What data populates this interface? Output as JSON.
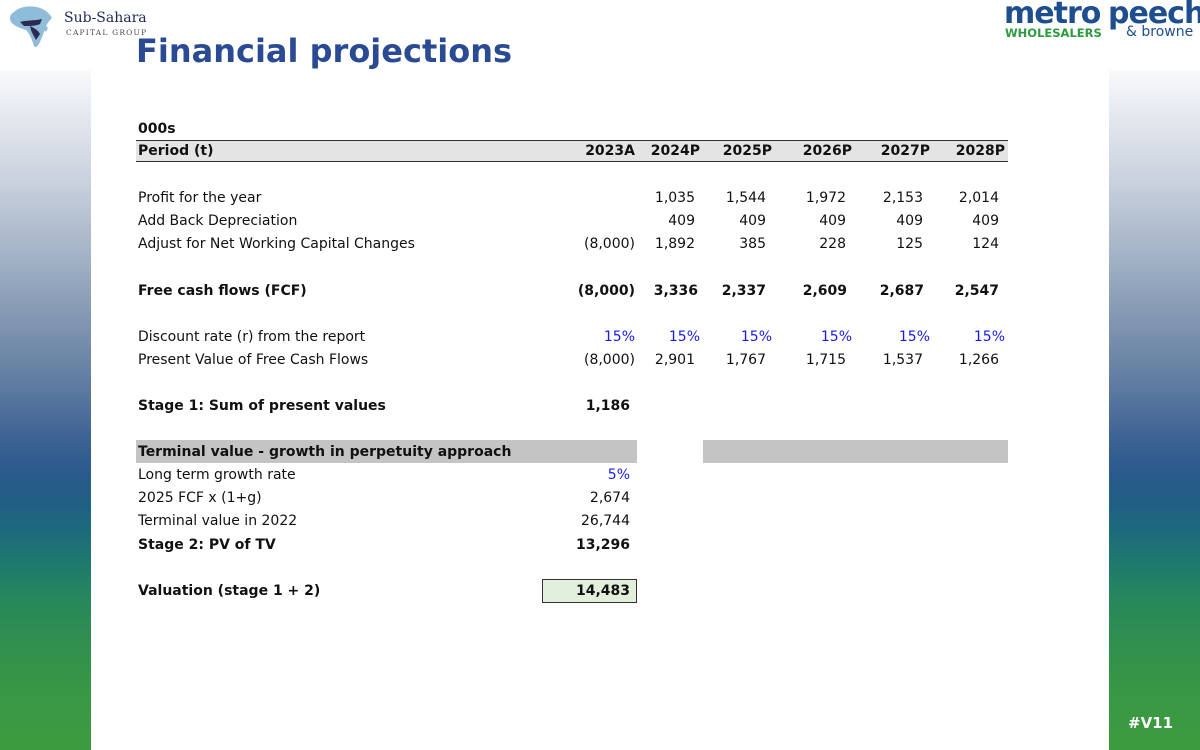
{
  "branding": {
    "left_logo_name": "Sub-Sahara",
    "left_logo_sub": "CAPITAL GROUP",
    "metro_word": "metro",
    "metro_sub": "WHOLESALERS",
    "peech_word": "peech",
    "browne_word": "& browne",
    "colors": {
      "title": "#2b4a94",
      "green": "#2e9a3f",
      "navy": "#1f4e8f"
    }
  },
  "page_title": "Financial projections",
  "version_tag": "#V11",
  "table": {
    "unit": "000s",
    "period_label": "Period (t)",
    "years": [
      "2023A",
      "2024P",
      "2025P",
      "2026P",
      "2027P",
      "2028P"
    ],
    "rows": {
      "profit": {
        "label": "Profit for the year",
        "values": [
          "",
          "1,035",
          "1,544",
          "1,972",
          "2,153",
          "2,014"
        ]
      },
      "depreciation": {
        "label": "Add Back Depreciation",
        "values": [
          "",
          "409",
          "409",
          "409",
          "409",
          "409"
        ]
      },
      "nwc": {
        "label": "Adjust for Net Working Capital Changes",
        "values": [
          "(8,000)",
          "1,892",
          "385",
          "228",
          "125",
          "124"
        ]
      },
      "fcf": {
        "label": "Free cash flows (FCF)",
        "values": [
          "(8,000)",
          "3,336",
          "2,337",
          "2,609",
          "2,687",
          "2,547"
        ]
      },
      "discount": {
        "label": "Discount rate (r) from the report",
        "values": [
          "15%",
          "15%",
          "15%",
          "15%",
          "15%",
          "15%"
        ]
      },
      "pv": {
        "label": "Present Value of Free Cash Flows",
        "values": [
          "(8,000)",
          "2,901",
          "1,767",
          "1,715",
          "1,537",
          "1,266"
        ]
      }
    },
    "stage1": {
      "label": "Stage 1: Sum of present values",
      "value": "1,186"
    },
    "terminal": {
      "heading": "Terminal value - growth in perpetuity approach",
      "growth_label": "Long term growth rate",
      "growth_value": "5%",
      "fcf_label": "2025 FCF x (1+g)",
      "fcf_value": "2,674",
      "tv_label": "Terminal value in 2022",
      "tv_value": "26,744",
      "stage2_label": "Stage 2: PV of TV",
      "stage2_value": "13,296"
    },
    "valuation": {
      "label": "Valuation (stage 1 + 2)",
      "value": "14,483"
    }
  }
}
